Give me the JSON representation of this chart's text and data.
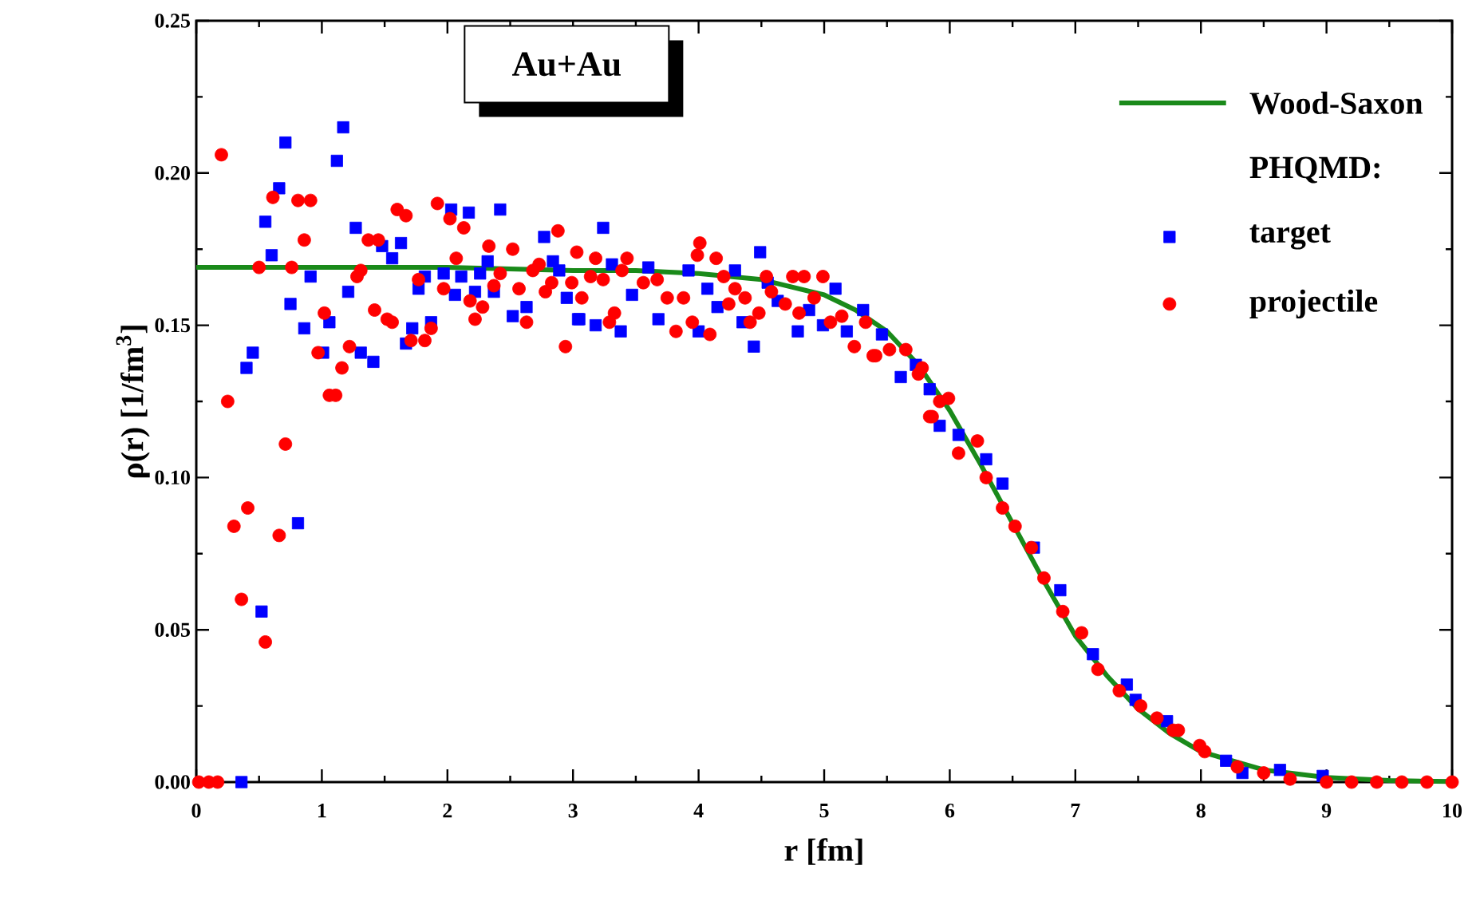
{
  "chart_data": {
    "type": "scatter",
    "title": "Au+Au",
    "xlabel": "r [fm]",
    "ylabel": "ρ(r) [1/fm$^{3}$]",
    "legend_title": "PHQMD:",
    "legend": "top right",
    "xlim": [
      0,
      10
    ],
    "xticks": [
      0,
      1,
      2,
      3,
      4,
      5,
      6,
      7,
      8,
      9,
      10
    ],
    "ylim": [
      0,
      0.25
    ],
    "yticks": [
      {
        "value": 0,
        "label": "0.00"
      },
      {
        "value": 0.05,
        "label": "0.05"
      },
      {
        "value": 0.1,
        "label": "0.10"
      },
      {
        "value": 0.15,
        "label": "0.15"
      },
      {
        "value": 0.2,
        "label": "0.20"
      },
      {
        "value": 0.25,
        "label": "0.25"
      }
    ],
    "series": [
      {
        "name": "Wood-Saxon",
        "type": "line",
        "color": "#1a8a1a",
        "line_style": "solid",
        "x": [
          0,
          1,
          2,
          3,
          3.5,
          4,
          4.5,
          5,
          5.25,
          5.5,
          5.75,
          6,
          6.25,
          6.5,
          6.75,
          7,
          7.25,
          7.5,
          7.75,
          8,
          8.5,
          9,
          9.5,
          10
        ],
        "values": [
          0.169,
          0.169,
          0.169,
          0.168,
          0.168,
          0.167,
          0.165,
          0.16,
          0.155,
          0.148,
          0.137,
          0.122,
          0.104,
          0.085,
          0.066,
          0.048,
          0.035,
          0.024,
          0.016,
          0.01,
          0.004,
          0.0015,
          0.0005,
          0.0002
        ]
      },
      {
        "name": "target",
        "type": "scatter",
        "marker": "square",
        "color": "#0000ff",
        "x": [
          0.36,
          0.52,
          0.4,
          0.45,
          0.55,
          0.6,
          0.66,
          0.71,
          0.75,
          0.81,
          0.86,
          0.91,
          1.01,
          1.06,
          1.12,
          1.17,
          1.21,
          1.27,
          1.31,
          1.41,
          1.48,
          1.56,
          1.63,
          1.67,
          1.72,
          1.77,
          1.82,
          1.87,
          1.97,
          2.06,
          2.11,
          2.03,
          2.17,
          2.22,
          2.26,
          2.32,
          2.37,
          2.42,
          2.52,
          2.63,
          2.77,
          2.84,
          2.89,
          2.95,
          3.04,
          3.24,
          3.18,
          3.38,
          3.68,
          3.47,
          3.6,
          3.31,
          3.05,
          3.92,
          4.07,
          4.15,
          4.0,
          4.29,
          4.35,
          4.44,
          4.49,
          4.55,
          4.63,
          4.79,
          4.88,
          4.99,
          5.09,
          5.18,
          5.31,
          5.46,
          5.61,
          5.73,
          5.84,
          5.92,
          6.07,
          6.29,
          6.42,
          6.67,
          6.88,
          7.14,
          7.41,
          7.48,
          7.73,
          8.2,
          8.33,
          8.63,
          8.97
        ],
        "values": [
          0,
          0.056,
          0.136,
          0.141,
          0.184,
          0.173,
          0.195,
          0.21,
          0.157,
          0.085,
          0.149,
          0.166,
          0.141,
          0.151,
          0.204,
          0.215,
          0.161,
          0.182,
          0.141,
          0.138,
          0.176,
          0.172,
          0.177,
          0.144,
          0.149,
          0.162,
          0.166,
          0.151,
          0.167,
          0.16,
          0.166,
          0.188,
          0.187,
          0.161,
          0.167,
          0.171,
          0.161,
          0.188,
          0.153,
          0.156,
          0.179,
          0.171,
          0.168,
          0.159,
          0.152,
          0.182,
          0.15,
          0.148,
          0.152,
          0.16,
          0.169,
          0.17,
          0.152,
          0.168,
          0.162,
          0.156,
          0.148,
          0.168,
          0.151,
          0.143,
          0.174,
          0.164,
          0.158,
          0.148,
          0.155,
          0.15,
          0.162,
          0.148,
          0.155,
          0.147,
          0.133,
          0.137,
          0.129,
          0.117,
          0.114,
          0.106,
          0.098,
          0.077,
          0.063,
          0.042,
          0.032,
          0.027,
          0.02,
          0.007,
          0.003,
          0.004,
          0.002
        ]
      },
      {
        "name": "projectile",
        "type": "scatter",
        "marker": "circle",
        "color": "#ff0000",
        "x": [
          0.02,
          0.1,
          0.17,
          0.2,
          0.25,
          0.3,
          0.36,
          0.41,
          0.5,
          0.55,
          0.61,
          0.66,
          0.71,
          0.76,
          0.81,
          0.86,
          0.91,
          0.97,
          1.02,
          1.06,
          1.11,
          1.16,
          1.22,
          1.28,
          1.31,
          1.37,
          1.45,
          1.42,
          1.52,
          1.56,
          1.6,
          1.67,
          1.71,
          1.82,
          1.87,
          1.77,
          1.92,
          1.97,
          2.02,
          2.07,
          2.13,
          2.18,
          2.22,
          2.28,
          2.33,
          2.37,
          2.42,
          2.52,
          2.57,
          2.63,
          2.68,
          2.73,
          2.78,
          2.83,
          2.88,
          2.94,
          2.99,
          3.03,
          3.07,
          3.18,
          3.14,
          3.24,
          3.33,
          3.29,
          3.43,
          3.39,
          3.56,
          3.67,
          3.75,
          3.82,
          3.88,
          3.95,
          4.01,
          3.99,
          4.14,
          4.09,
          4.2,
          4.29,
          4.24,
          4.37,
          4.41,
          4.48,
          4.54,
          4.58,
          4.69,
          4.75,
          4.84,
          4.8,
          4.92,
          4.99,
          5.05,
          5.14,
          5.24,
          5.33,
          5.41,
          5.52,
          5.65,
          5.78,
          5.84,
          5.92,
          5.39,
          5.75,
          5.86,
          5.99,
          6.07,
          6.22,
          6.29,
          6.42,
          6.52,
          6.65,
          6.75,
          6.9,
          7.05,
          7.18,
          7.35,
          7.52,
          7.65,
          7.82,
          7.99,
          7.78,
          8.03,
          8.29,
          8.5,
          8.71,
          9.0,
          9.2,
          9.4,
          9.6,
          9.8,
          10.0
        ],
        "values": [
          0,
          0,
          0,
          0.206,
          0.125,
          0.084,
          0.06,
          0.09,
          0.169,
          0.046,
          0.192,
          0.081,
          0.111,
          0.169,
          0.191,
          0.178,
          0.191,
          0.141,
          0.154,
          0.127,
          0.127,
          0.136,
          0.143,
          0.166,
          0.168,
          0.178,
          0.178,
          0.155,
          0.152,
          0.151,
          0.188,
          0.186,
          0.145,
          0.145,
          0.149,
          0.165,
          0.19,
          0.162,
          0.185,
          0.172,
          0.182,
          0.158,
          0.152,
          0.156,
          0.176,
          0.163,
          0.167,
          0.175,
          0.162,
          0.151,
          0.168,
          0.17,
          0.161,
          0.164,
          0.181,
          0.143,
          0.164,
          0.174,
          0.159,
          0.172,
          0.166,
          0.165,
          0.154,
          0.151,
          0.172,
          0.168,
          0.164,
          0.165,
          0.159,
          0.148,
          0.159,
          0.151,
          0.177,
          0.173,
          0.172,
          0.147,
          0.166,
          0.162,
          0.157,
          0.159,
          0.151,
          0.154,
          0.166,
          0.161,
          0.157,
          0.166,
          0.166,
          0.154,
          0.159,
          0.166,
          0.151,
          0.153,
          0.143,
          0.151,
          0.14,
          0.142,
          0.142,
          0.136,
          0.12,
          0.125,
          0.14,
          0.134,
          0.12,
          0.126,
          0.108,
          0.112,
          0.1,
          0.09,
          0.084,
          0.077,
          0.067,
          0.056,
          0.049,
          0.037,
          0.03,
          0.025,
          0.021,
          0.017,
          0.012,
          0.017,
          0.01,
          0.005,
          0.003,
          0.001,
          0,
          0,
          0,
          0,
          0,
          0
        ]
      }
    ]
  }
}
